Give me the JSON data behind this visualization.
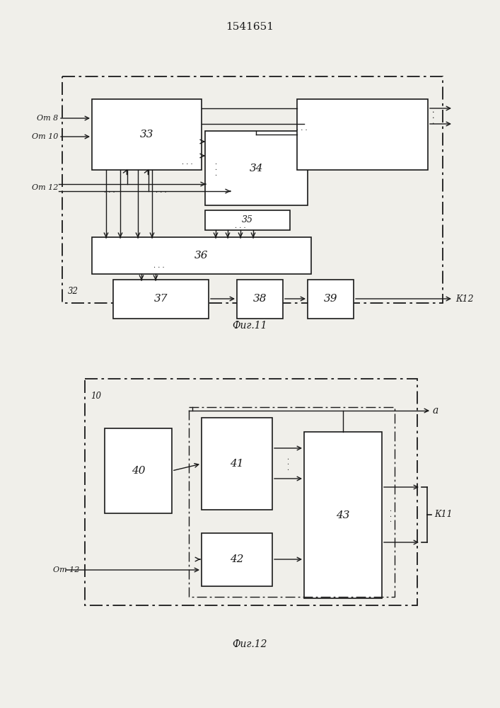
{
  "title": "1541651",
  "title_fontsize": 11,
  "fig1_caption": "Фиг.11",
  "fig2_caption": "Фиг.12",
  "bg_color": "#f0efea",
  "line_color": "#1a1a1a",
  "text_color": "#1a1a1a"
}
